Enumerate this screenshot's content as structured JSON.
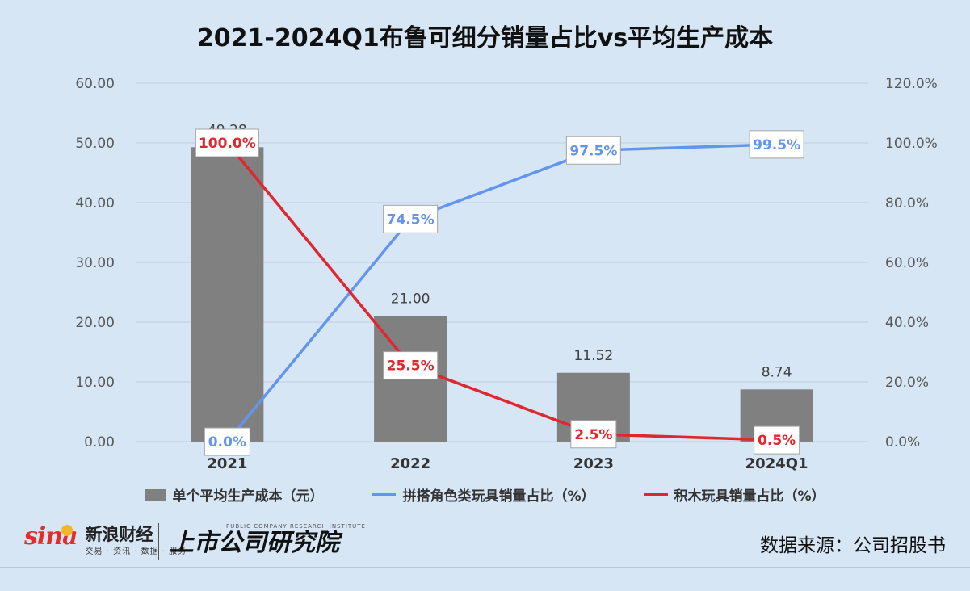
{
  "title": "2021-2024Q1布鲁可细分销量占比vs平均生产成本",
  "source": "数据来源：公司招股书",
  "logos": {
    "sina_word": "sina",
    "sina_cn": "新浪财经",
    "sina_sub": "交易 · 资讯 · 数据 · 服务",
    "inst_en": "PUBLIC COMPANY RESEARCH INSTITUTE",
    "inst_cn": "上市公司研究院"
  },
  "colors": {
    "bar": "#808080",
    "blue": "#6495ed",
    "red": "#e0262e",
    "grid": "#c0cfdc"
  },
  "chart_data": {
    "type": "bar",
    "categories": [
      "2021",
      "2022",
      "2023",
      "2024Q1"
    ],
    "y_left": {
      "ylim": [
        0,
        60
      ],
      "ticks": [
        "0.00",
        "10.00",
        "20.00",
        "30.00",
        "40.00",
        "50.00",
        "60.00"
      ]
    },
    "y_right": {
      "ylim": [
        0,
        120
      ],
      "ticks": [
        "0.0%",
        "20.0%",
        "40.0%",
        "60.0%",
        "80.0%",
        "100.0%",
        "120.0%"
      ]
    },
    "grid": true,
    "legend_position": "bottom",
    "series": [
      {
        "name": "单个平均生产成本（元）",
        "type": "bar",
        "axis": "left",
        "values": [
          49.28,
          21.0,
          11.52,
          8.74
        ],
        "labels": [
          "49.28",
          "21.00",
          "11.52",
          "8.74"
        ]
      },
      {
        "name": "拼搭角色类玩具销量占比（%）",
        "type": "line",
        "axis": "right",
        "values": [
          0.0,
          74.5,
          97.5,
          99.5
        ],
        "labels": [
          "0.0%",
          "74.5%",
          "97.5%",
          "99.5%"
        ]
      },
      {
        "name": "积木玩具销量占比（%）",
        "type": "line",
        "axis": "right",
        "values": [
          100.0,
          25.5,
          2.5,
          0.5
        ],
        "labels": [
          "100.0%",
          "25.5%",
          "2.5%",
          "0.5%"
        ]
      }
    ]
  }
}
